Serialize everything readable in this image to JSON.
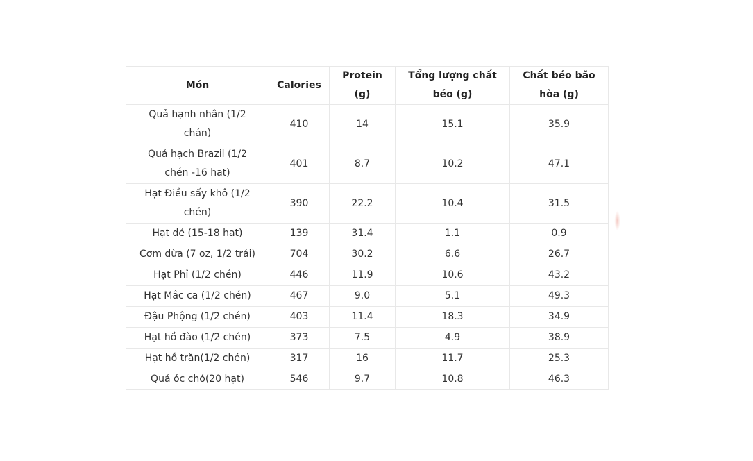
{
  "colors": {
    "page_background": "#ffffff",
    "border": "#e8e8e8",
    "body_text": "#333333",
    "header_text": "#222222",
    "smudge_artifact": "#eca096"
  },
  "table": {
    "columns": [
      "Món",
      "Calories",
      "Protein (g)",
      "Tổng lượng chất béo (g)",
      "Chất béo bão hòa (g)"
    ],
    "rows": [
      [
        "Quả hạnh nhân (1/2\nchán)",
        "410",
        "14",
        "15.1",
        "35.9"
      ],
      [
        "Quả hạch Brazil (1/2\nchén -16 hat)",
        "401",
        "8.7",
        "10.2",
        "47.1"
      ],
      [
        "Hạt Điều sấy khô (1/2\nchén)",
        "390",
        "22.2",
        "10.4",
        "31.5"
      ],
      [
        "Hạt dẻ (15-18 hat)",
        "139",
        "31.4",
        "1.1",
        "0.9"
      ],
      [
        "Cơm dừa (7 oz, 1/2 trái)",
        "704",
        "30.2",
        "6.6",
        "26.7"
      ],
      [
        "Hạt Phỉ (1/2 chén)",
        "446",
        "11.9",
        "10.6",
        "43.2"
      ],
      [
        "Hạt Mắc ca (1/2 chén)",
        "467",
        "9.0",
        "5.1",
        "49.3"
      ],
      [
        "Đậu Phộng (1/2 chén)",
        "403",
        "11.4",
        "18.3",
        "34.9"
      ],
      [
        "Hạt hồ đào (1/2 chén)",
        "373",
        "7.5",
        "4.9",
        "38.9"
      ],
      [
        "Hạt hồ trăn(1/2 chén)",
        "317",
        "16",
        "11.7",
        "25.3"
      ],
      [
        "Quả óc chó(20 hạt)",
        "546",
        "9.7",
        "10.8",
        "46.3"
      ]
    ]
  },
  "chart_data": {
    "type": "table",
    "title": "",
    "columns": [
      "Món",
      "Calories",
      "Protein (g)",
      "Tổng lượng chất béo (g)",
      "Chất béo bão hòa (g)"
    ],
    "rows": [
      {
        "mon": "Quả hạnh nhân (1/2 chán)",
        "calories": 410,
        "protein_g": 14,
        "tong_luong_chat_beo_g": 15.1,
        "chat_beo_bao_hoa_g": 35.9
      },
      {
        "mon": "Quả hạch Brazil (1/2 chén -16 hat)",
        "calories": 401,
        "protein_g": 8.7,
        "tong_luong_chat_beo_g": 10.2,
        "chat_beo_bao_hoa_g": 47.1
      },
      {
        "mon": "Hạt Điều sấy khô (1/2 chén)",
        "calories": 390,
        "protein_g": 22.2,
        "tong_luong_chat_beo_g": 10.4,
        "chat_beo_bao_hoa_g": 31.5
      },
      {
        "mon": "Hạt dẻ (15-18 hat)",
        "calories": 139,
        "protein_g": 31.4,
        "tong_luong_chat_beo_g": 1.1,
        "chat_beo_bao_hoa_g": 0.9
      },
      {
        "mon": "Cơm dừa (7 oz, 1/2 trái)",
        "calories": 704,
        "protein_g": 30.2,
        "tong_luong_chat_beo_g": 6.6,
        "chat_beo_bao_hoa_g": 26.7
      },
      {
        "mon": "Hạt Phỉ (1/2 chén)",
        "calories": 446,
        "protein_g": 11.9,
        "tong_luong_chat_beo_g": 10.6,
        "chat_beo_bao_hoa_g": 43.2
      },
      {
        "mon": "Hạt Mắc ca (1/2 chén)",
        "calories": 467,
        "protein_g": 9.0,
        "tong_luong_chat_beo_g": 5.1,
        "chat_beo_bao_hoa_g": 49.3
      },
      {
        "mon": "Đậu Phộng (1/2 chén)",
        "calories": 403,
        "protein_g": 11.4,
        "tong_luong_chat_beo_g": 18.3,
        "chat_beo_bao_hoa_g": 34.9
      },
      {
        "mon": "Hạt hồ đào (1/2 chén)",
        "calories": 373,
        "protein_g": 7.5,
        "tong_luong_chat_beo_g": 4.9,
        "chat_beo_bao_hoa_g": 38.9
      },
      {
        "mon": "Hạt hồ trăn(1/2 chén)",
        "calories": 317,
        "protein_g": 16,
        "tong_luong_chat_beo_g": 11.7,
        "chat_beo_bao_hoa_g": 25.3
      },
      {
        "mon": "Quả óc chó(20 hạt)",
        "calories": 546,
        "protein_g": 9.7,
        "tong_luong_chat_beo_g": 10.8,
        "chat_beo_bao_hoa_g": 46.3
      }
    ]
  }
}
